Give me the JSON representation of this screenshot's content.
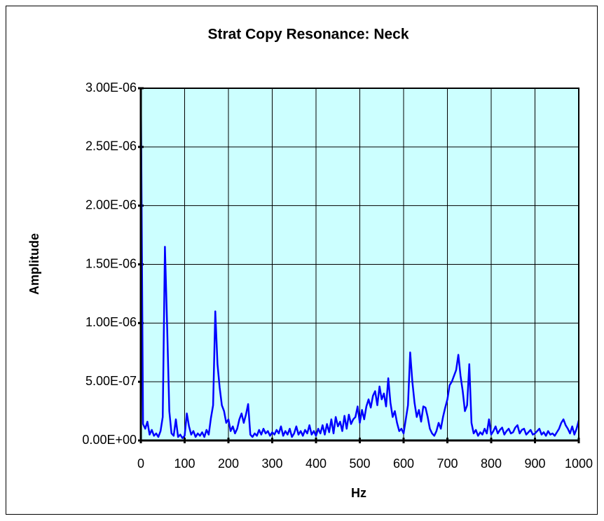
{
  "chart_data": {
    "type": "line",
    "title": "Strat Copy Resonance: Neck",
    "xlabel": "Hz",
    "ylabel": "Amplitude",
    "color": "#0000ff",
    "background": "#ccffff",
    "grid": true,
    "xlim": [
      0,
      1000
    ],
    "xticks": [
      0,
      100,
      200,
      300,
      400,
      500,
      600,
      700,
      800,
      900,
      1000
    ],
    "ylim": [
      0,
      3e-06
    ],
    "yticks": [
      {
        "value": 0,
        "label": "0.00E+00"
      },
      {
        "value": 5e-07,
        "label": "5.00E-07"
      },
      {
        "value": 1e-06,
        "label": "1.00E-06"
      },
      {
        "value": 1.5e-06,
        "label": "1.50E-06"
      },
      {
        "value": 2e-06,
        "label": "2.00E-06"
      },
      {
        "value": 2.5e-06,
        "label": "2.50E-06"
      },
      {
        "value": 3e-06,
        "label": "3.00E-06"
      }
    ],
    "x": [
      0,
      5,
      10,
      15,
      20,
      25,
      30,
      35,
      40,
      45,
      50,
      55,
      60,
      65,
      70,
      75,
      80,
      85,
      90,
      95,
      100,
      105,
      110,
      115,
      120,
      125,
      130,
      135,
      140,
      145,
      150,
      155,
      160,
      165,
      170,
      175,
      180,
      185,
      190,
      195,
      200,
      205,
      210,
      215,
      220,
      225,
      230,
      235,
      240,
      245,
      250,
      255,
      260,
      265,
      270,
      275,
      280,
      285,
      290,
      295,
      300,
      305,
      310,
      315,
      320,
      325,
      330,
      335,
      340,
      345,
      350,
      355,
      360,
      365,
      370,
      375,
      380,
      385,
      390,
      395,
      400,
      405,
      410,
      415,
      420,
      425,
      430,
      435,
      440,
      445,
      450,
      455,
      460,
      465,
      470,
      475,
      480,
      485,
      490,
      495,
      500,
      505,
      510,
      515,
      520,
      525,
      530,
      535,
      540,
      545,
      550,
      555,
      560,
      565,
      570,
      575,
      580,
      585,
      590,
      595,
      600,
      605,
      610,
      615,
      620,
      625,
      630,
      635,
      640,
      645,
      650,
      655,
      660,
      665,
      670,
      675,
      680,
      685,
      690,
      695,
      700,
      705,
      710,
      715,
      720,
      725,
      730,
      735,
      740,
      745,
      750,
      755,
      760,
      765,
      770,
      775,
      780,
      785,
      790,
      795,
      800,
      805,
      810,
      815,
      820,
      825,
      830,
      835,
      840,
      845,
      850,
      855,
      860,
      865,
      870,
      875,
      880,
      885,
      890,
      895,
      900,
      905,
      910,
      915,
      920,
      925,
      930,
      935,
      940,
      945,
      950,
      955,
      960,
      965,
      970,
      975,
      980,
      985,
      990,
      995,
      1000
    ],
    "values": [
      3e-06,
      1.4e-07,
      1e-07,
      1.6e-07,
      5e-08,
      9e-08,
      4e-08,
      6e-08,
      3e-08,
      8e-08,
      2e-07,
      1.65e-06,
      9.8e-07,
      2.5e-07,
      6e-08,
      4e-08,
      1.8e-07,
      3e-08,
      5e-08,
      2e-08,
      4e-08,
      2.3e-07,
      1.2e-07,
      5e-08,
      8e-08,
      3e-08,
      6e-08,
      4e-08,
      7e-08,
      3e-08,
      9e-08,
      5e-08,
      1.9e-07,
      3e-07,
      1.1e-06,
      6.5e-07,
      4.5e-07,
      3e-07,
      2.5e-07,
      1.5e-07,
      1.8e-07,
      8e-08,
      1.2e-07,
      6e-08,
      1e-07,
      1.8e-07,
      2.3e-07,
      1.5e-07,
      2.2e-07,
      3.1e-07,
      5e-08,
      3e-08,
      6e-08,
      4e-08,
      9e-08,
      5e-08,
      1e-07,
      6e-08,
      8e-08,
      4e-08,
      7e-08,
      5e-08,
      9e-08,
      6e-08,
      1.2e-07,
      4e-08,
      8e-08,
      5e-08,
      1e-07,
      3e-08,
      6e-08,
      1.2e-07,
      5e-08,
      8e-08,
      4e-08,
      9e-08,
      6e-08,
      1.3e-07,
      5e-08,
      8e-08,
      4e-08,
      1e-07,
      6e-08,
      1.3e-07,
      5e-08,
      1.4e-07,
      7e-08,
      1.8e-07,
      6e-08,
      2e-07,
      1.2e-07,
      1.6e-07,
      8e-08,
      2.1e-07,
      1e-07,
      2.2e-07,
      1.4e-07,
      1.8e-07,
      2e-07,
      2.9e-07,
      1.5e-07,
      2.6e-07,
      1.8e-07,
      2.9e-07,
      3.5e-07,
      2.8e-07,
      3.8e-07,
      4.2e-07,
      3e-07,
      4.6e-07,
      3.5e-07,
      4e-07,
      2.9e-07,
      5.3e-07,
      3.2e-07,
      2e-07,
      2.5e-07,
      1.5e-07,
      8e-08,
      1e-07,
      6e-08,
      1.8e-07,
      3e-07,
      7.5e-07,
      5e-07,
      3.2e-07,
      2e-07,
      2.6e-07,
      1.6e-07,
      2.9e-07,
      2.8e-07,
      2e-07,
      1e-07,
      6e-08,
      4e-08,
      8e-08,
      1.5e-07,
      1e-07,
      2e-07,
      2.8e-07,
      3.5e-07,
      4.7e-07,
      5e-07,
      5.5e-07,
      6e-07,
      7.3e-07,
      5.5e-07,
      4.2e-07,
      2.5e-07,
      3e-07,
      6.5e-07,
      1.5e-07,
      6e-08,
      9e-08,
      4e-08,
      7e-08,
      5e-08,
      1e-07,
      6e-08,
      1.8e-07,
      5e-08,
      8e-08,
      1.2e-07,
      6e-08,
      9e-08,
      1.1e-07,
      5e-08,
      8e-08,
      1e-07,
      6e-08,
      7e-08,
      1.1e-07,
      1.3e-07,
      6e-08,
      9e-08,
      1e-07,
      5e-08,
      7e-08,
      9e-08,
      5e-08,
      6e-08,
      8e-08,
      1e-07,
      5e-08,
      7e-08,
      4e-08,
      8e-08,
      5e-08,
      6e-08,
      4e-08,
      7e-08,
      1e-07,
      1.5e-07,
      1.8e-07,
      1.3e-07,
      1e-07,
      6e-08,
      1.2e-07,
      5e-08,
      1e-07,
      1.7e-07
    ]
  }
}
